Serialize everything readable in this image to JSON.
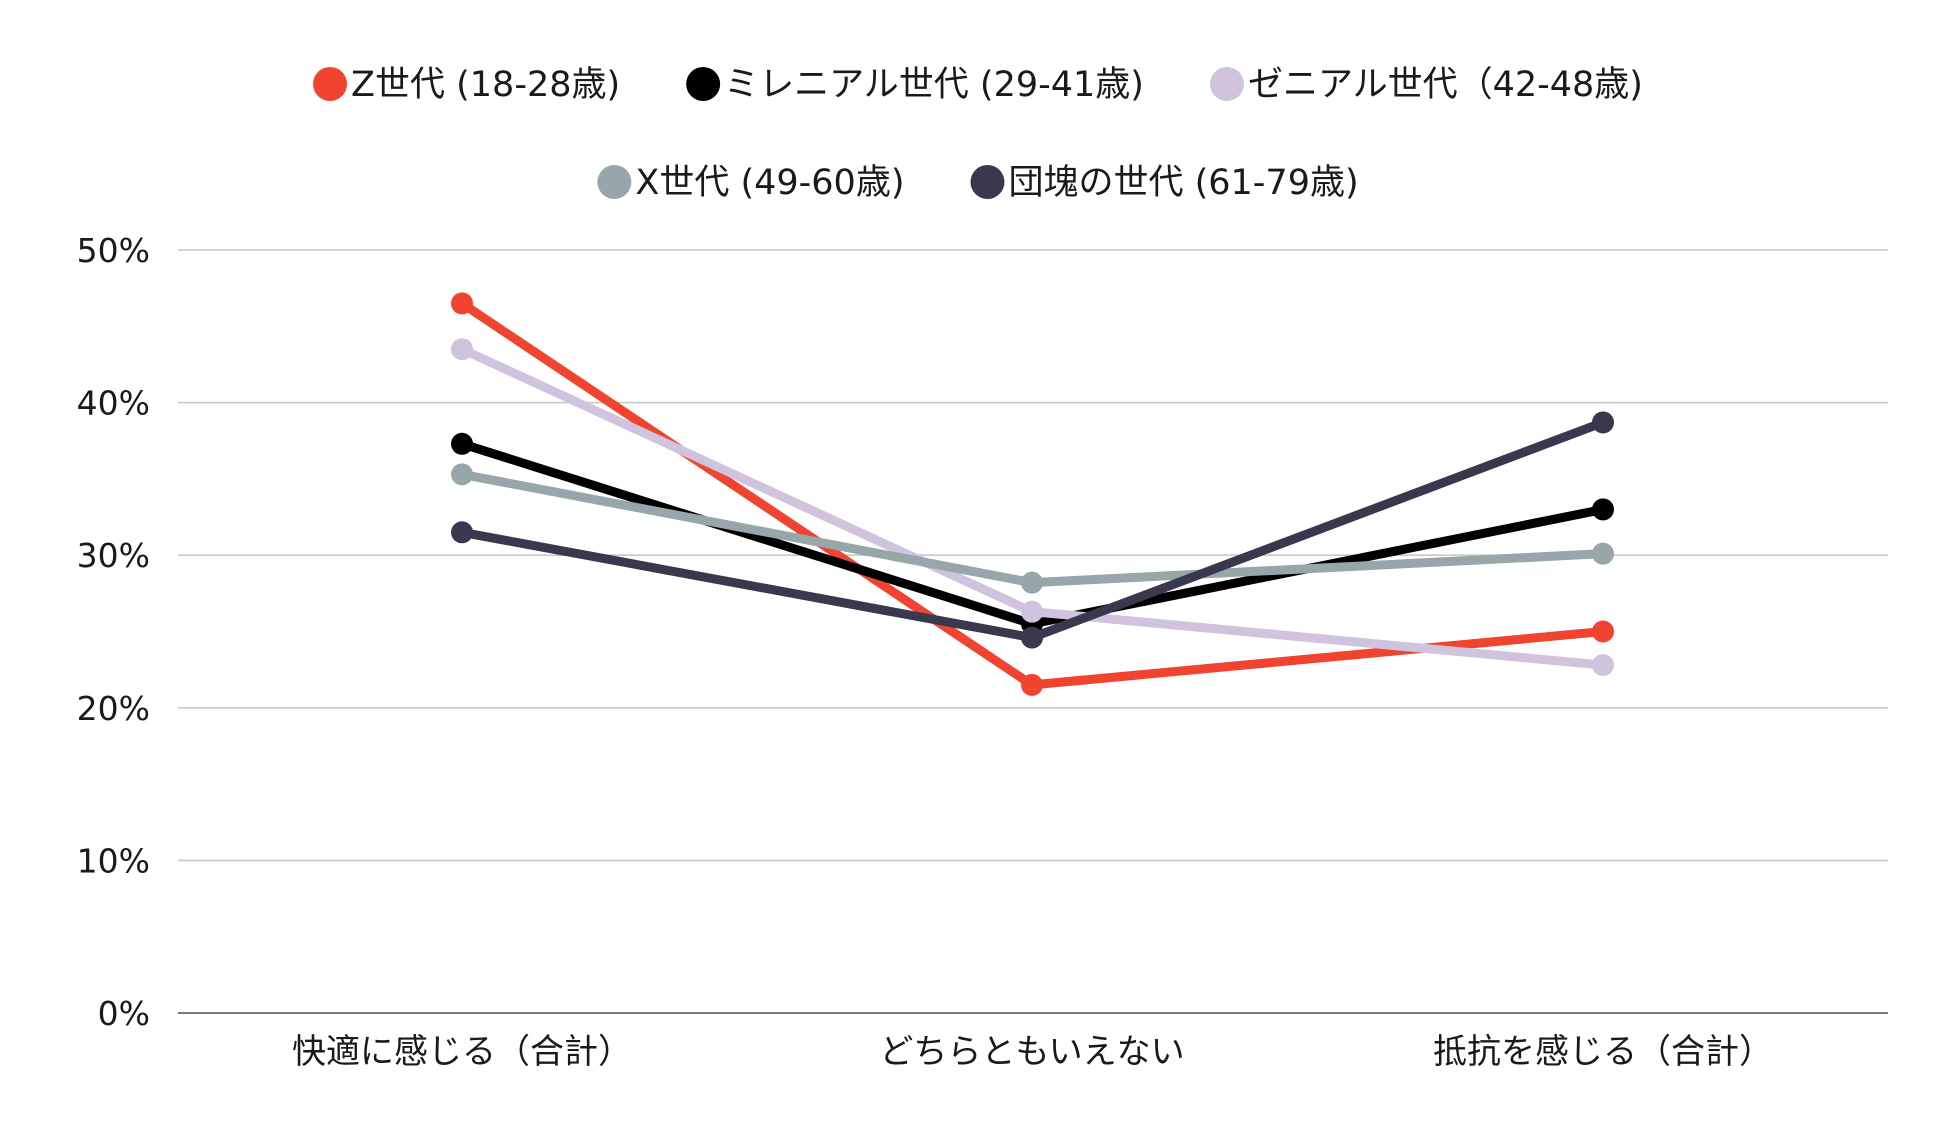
{
  "chart_data": {
    "type": "line",
    "title": "",
    "xlabel": "",
    "ylabel": "",
    "categories": [
      "快適に感じる（合計）",
      "どちらともいえない",
      "抵抗を感じる（合計）"
    ],
    "ylim": [
      0,
      50
    ],
    "yticks": [
      0,
      10,
      20,
      30,
      40,
      50
    ],
    "ytick_labels": [
      "0%",
      "10%",
      "20%",
      "30%",
      "40%",
      "50%"
    ],
    "grid": true,
    "legend_position": "top",
    "series": [
      {
        "name": "Z世代 (18-28歳)",
        "color": "#f04330",
        "values": [
          46.5,
          21.5,
          25.0
        ]
      },
      {
        "name": "ミレニアル世代 (29-41歳)",
        "color": "#000000",
        "values": [
          37.3,
          25.5,
          33.0
        ]
      },
      {
        "name": "ゼニアル世代（42-48歳)",
        "color": "#cfc3de",
        "values": [
          43.5,
          26.3,
          22.8
        ]
      },
      {
        "name": "X世代 (49-60歳)",
        "color": "#97a6a9",
        "values": [
          35.3,
          28.2,
          30.1
        ]
      },
      {
        "name": "団塊の世代 (61-79歳)",
        "color": "#3a384f",
        "values": [
          31.5,
          24.6,
          38.7
        ]
      }
    ]
  }
}
